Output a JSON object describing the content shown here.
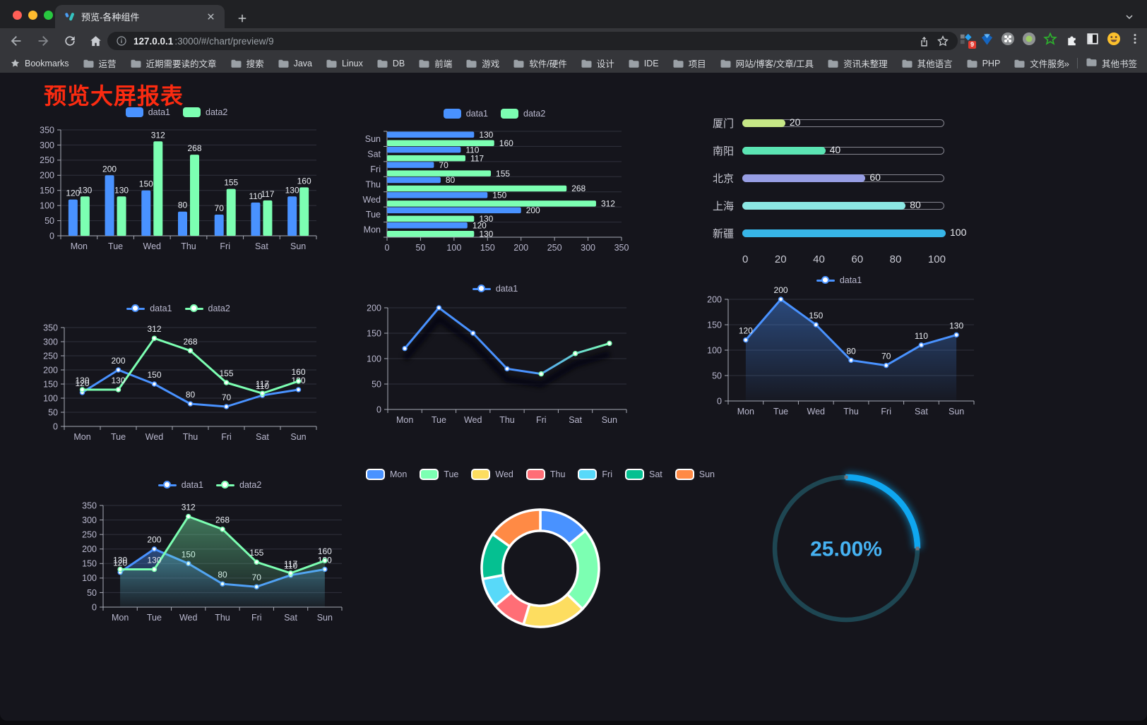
{
  "browser": {
    "tab": {
      "title": "预览-各种组件"
    },
    "url": {
      "host": "127.0.0.1",
      "port_path": ":3000/#/chart/preview/9"
    },
    "extensions_badge": "9",
    "bookmarks_bar": {
      "root_label": "Bookmarks",
      "folders": [
        "运营",
        "近期需要读的文章",
        "搜索",
        "Java",
        "Linux",
        "DB",
        "前端",
        "游戏",
        "软件/硬件",
        "设计",
        "IDE",
        "项目",
        "网站/博客/文章/工具",
        "资讯未整理",
        "其他语言",
        "PHP",
        "文件服务器"
      ],
      "overflow_chevron": "»",
      "other_bookmarks": "其他书签"
    }
  },
  "page": {
    "title": "预览大屏报表"
  },
  "theme": {
    "axis_color": "#b9b8ce",
    "axis_line": "#a8aab6",
    "grid_color": "#30313c",
    "label_color": "#e9ecf2",
    "content_bg": "#15151c"
  },
  "chart_data": [
    {
      "id": "bar-vertical",
      "type": "bar",
      "legend_position": "top",
      "grid": true,
      "categories": [
        "Mon",
        "Tue",
        "Wed",
        "Thu",
        "Fri",
        "Sat",
        "Sun"
      ],
      "series": [
        {
          "name": "data1",
          "color": "#4992ff",
          "values": [
            120,
            200,
            150,
            80,
            70,
            110,
            130
          ]
        },
        {
          "name": "data2",
          "color": "#7cffb2",
          "values": [
            130,
            130,
            312,
            268,
            155,
            117,
            160
          ]
        }
      ],
      "ylim": [
        0,
        350
      ],
      "yticks": [
        0,
        50,
        100,
        150,
        200,
        250,
        300,
        350
      ],
      "value_labels": true
    },
    {
      "id": "bar-horizontal",
      "type": "bar-horizontal",
      "legend_position": "top",
      "categories": [
        "Mon",
        "Tue",
        "Wed",
        "Thu",
        "Fri",
        "Sat",
        "Sun"
      ],
      "display_order_top_to_bottom": [
        "Sun",
        "Sat",
        "Fri",
        "Thu",
        "Wed",
        "Tue",
        "Mon"
      ],
      "series": [
        {
          "name": "data1",
          "color": "#4992ff",
          "values": [
            120,
            200,
            150,
            80,
            70,
            110,
            130
          ]
        },
        {
          "name": "data2",
          "color": "#7cffb2",
          "values": [
            130,
            130,
            312,
            268,
            155,
            117,
            160
          ]
        }
      ],
      "xlim": [
        0,
        350
      ],
      "xticks": [
        0,
        50,
        100,
        150,
        200,
        250,
        300,
        350
      ],
      "value_labels": true
    },
    {
      "id": "progress-bars",
      "type": "bar",
      "variant": "progress-pills",
      "rows": [
        {
          "label": "厦门",
          "value": 20,
          "color": "#c6e786"
        },
        {
          "label": "南阳",
          "value": 40,
          "color": "#5be4b3"
        },
        {
          "label": "北京",
          "value": 60,
          "color": "#979ee4"
        },
        {
          "label": "上海",
          "value": 80,
          "color": "#8ce8e4"
        },
        {
          "label": "新疆",
          "value": 100,
          "color": "#37b5e7"
        }
      ],
      "xlim": [
        0,
        100
      ],
      "xticks": [
        0,
        20,
        40,
        60,
        80,
        100
      ]
    },
    {
      "id": "line-two-series",
      "type": "line",
      "legend_position": "top",
      "categories": [
        "Mon",
        "Tue",
        "Wed",
        "Thu",
        "Fri",
        "Sat",
        "Sun"
      ],
      "series": [
        {
          "name": "data1",
          "color": "#4992ff",
          "values": [
            120,
            200,
            150,
            80,
            70,
            110,
            130
          ]
        },
        {
          "name": "data2",
          "color": "#7cffb2",
          "values": [
            130,
            130,
            312,
            268,
            155,
            117,
            160
          ]
        }
      ],
      "ylim": [
        0,
        350
      ],
      "yticks": [
        0,
        50,
        100,
        150,
        200,
        250,
        300,
        350
      ],
      "value_labels": true
    },
    {
      "id": "line-gradient",
      "type": "line",
      "legend_position": "top",
      "categories": [
        "Mon",
        "Tue",
        "Wed",
        "Thu",
        "Fri",
        "Sat",
        "Sun"
      ],
      "series": [
        {
          "name": "data1",
          "gradient": [
            "#4992ff",
            "#7cffb2"
          ],
          "shadow": true,
          "values": [
            120,
            200,
            150,
            80,
            70,
            110,
            130
          ]
        }
      ],
      "ylim": [
        0,
        200
      ],
      "yticks": [
        0,
        50,
        100,
        150,
        200
      ],
      "value_labels": false
    },
    {
      "id": "area-single",
      "type": "area",
      "legend_position": "top",
      "categories": [
        "Mon",
        "Tue",
        "Wed",
        "Thu",
        "Fri",
        "Sat",
        "Sun"
      ],
      "series": [
        {
          "name": "data1",
          "color": "#4992ff",
          "area": true,
          "values": [
            120,
            200,
            150,
            80,
            70,
            110,
            130
          ]
        }
      ],
      "ylim": [
        0,
        200
      ],
      "yticks": [
        0,
        50,
        100,
        150,
        200
      ],
      "value_labels": true
    },
    {
      "id": "area-two-series",
      "type": "area",
      "legend_position": "top",
      "categories": [
        "Mon",
        "Tue",
        "Wed",
        "Thu",
        "Fri",
        "Sat",
        "Sun"
      ],
      "series": [
        {
          "name": "data1",
          "color": "#4992ff",
          "area": true,
          "values": [
            120,
            200,
            150,
            80,
            70,
            110,
            130
          ]
        },
        {
          "name": "data2",
          "color": "#7cffb2",
          "area": true,
          "values": [
            130,
            130,
            312,
            268,
            155,
            117,
            160
          ]
        }
      ],
      "ylim": [
        0,
        350
      ],
      "yticks": [
        0,
        50,
        100,
        150,
        200,
        250,
        300,
        350
      ],
      "value_labels": true
    },
    {
      "id": "donut",
      "type": "pie",
      "legend_position": "top",
      "categories": [
        "Mon",
        "Tue",
        "Wed",
        "Thu",
        "Fri",
        "Sat",
        "Sun"
      ],
      "values": [
        120,
        200,
        150,
        80,
        70,
        110,
        130
      ],
      "colors": [
        "#4992ff",
        "#7cffb2",
        "#fddd60",
        "#ff6e76",
        "#58d9f9",
        "#05c091",
        "#ff8a45"
      ],
      "inner_radius_ratio": 0.64,
      "border_color": "#ffffff"
    },
    {
      "id": "gauge",
      "type": "gauge",
      "value": 25,
      "max": 100,
      "label": "25.00%",
      "color": "#0fa7f0",
      "track_color": "#1e4652",
      "text_color": "#46b2f2"
    }
  ]
}
